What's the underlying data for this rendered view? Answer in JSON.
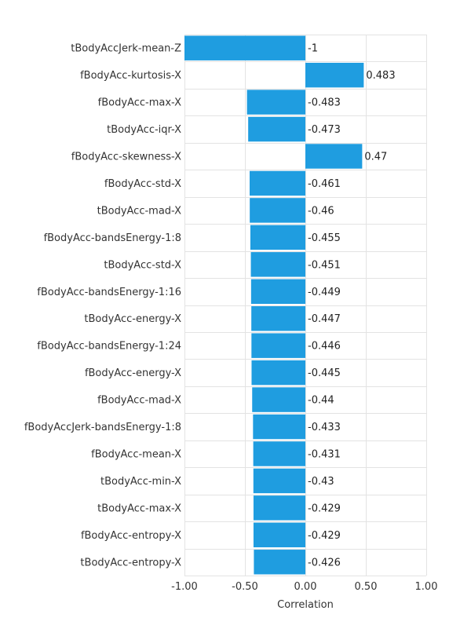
{
  "chart_data": {
    "type": "bar",
    "orientation": "horizontal",
    "categories": [
      "tBodyAccJerk-mean-Z",
      "fBodyAcc-kurtosis-X",
      "fBodyAcc-max-X",
      "tBodyAcc-iqr-X",
      "fBodyAcc-skewness-X",
      "fBodyAcc-std-X",
      "tBodyAcc-mad-X",
      "fBodyAcc-bandsEnergy-1:8",
      "tBodyAcc-std-X",
      "fBodyAcc-bandsEnergy-1:16",
      "tBodyAcc-energy-X",
      "fBodyAcc-bandsEnergy-1:24",
      "fBodyAcc-energy-X",
      "fBodyAcc-mad-X",
      "fBodyAccJerk-bandsEnergy-1:8",
      "fBodyAcc-mean-X",
      "tBodyAcc-min-X",
      "tBodyAcc-max-X",
      "fBodyAcc-entropy-X",
      "tBodyAcc-entropy-X"
    ],
    "values": [
      -1,
      0.483,
      -0.483,
      -0.473,
      0.47,
      -0.461,
      -0.46,
      -0.455,
      -0.451,
      -0.449,
      -0.447,
      -0.446,
      -0.445,
      -0.44,
      -0.433,
      -0.431,
      -0.43,
      -0.429,
      -0.429,
      -0.426
    ],
    "value_labels": [
      "-1",
      "0.483",
      "-0.483",
      "-0.473",
      "0.47",
      "-0.461",
      "-0.46",
      "-0.455",
      "-0.451",
      "-0.449",
      "-0.447",
      "-0.446",
      "-0.445",
      "-0.44",
      "-0.433",
      "-0.431",
      "-0.43",
      "-0.429",
      "-0.429",
      "-0.426"
    ],
    "title": "",
    "xlabel": "Correlation",
    "ylabel": "",
    "xlim": [
      -1.0,
      1.0
    ],
    "xticks": [
      -1.0,
      -0.5,
      0.0,
      0.5,
      1.0
    ],
    "xtick_labels": [
      "-1.00",
      "-0.50",
      "0.00",
      "0.50",
      "1.00"
    ],
    "grid": true,
    "bar_color": "#1f9de0",
    "grid_color": "#e3e3e3"
  }
}
